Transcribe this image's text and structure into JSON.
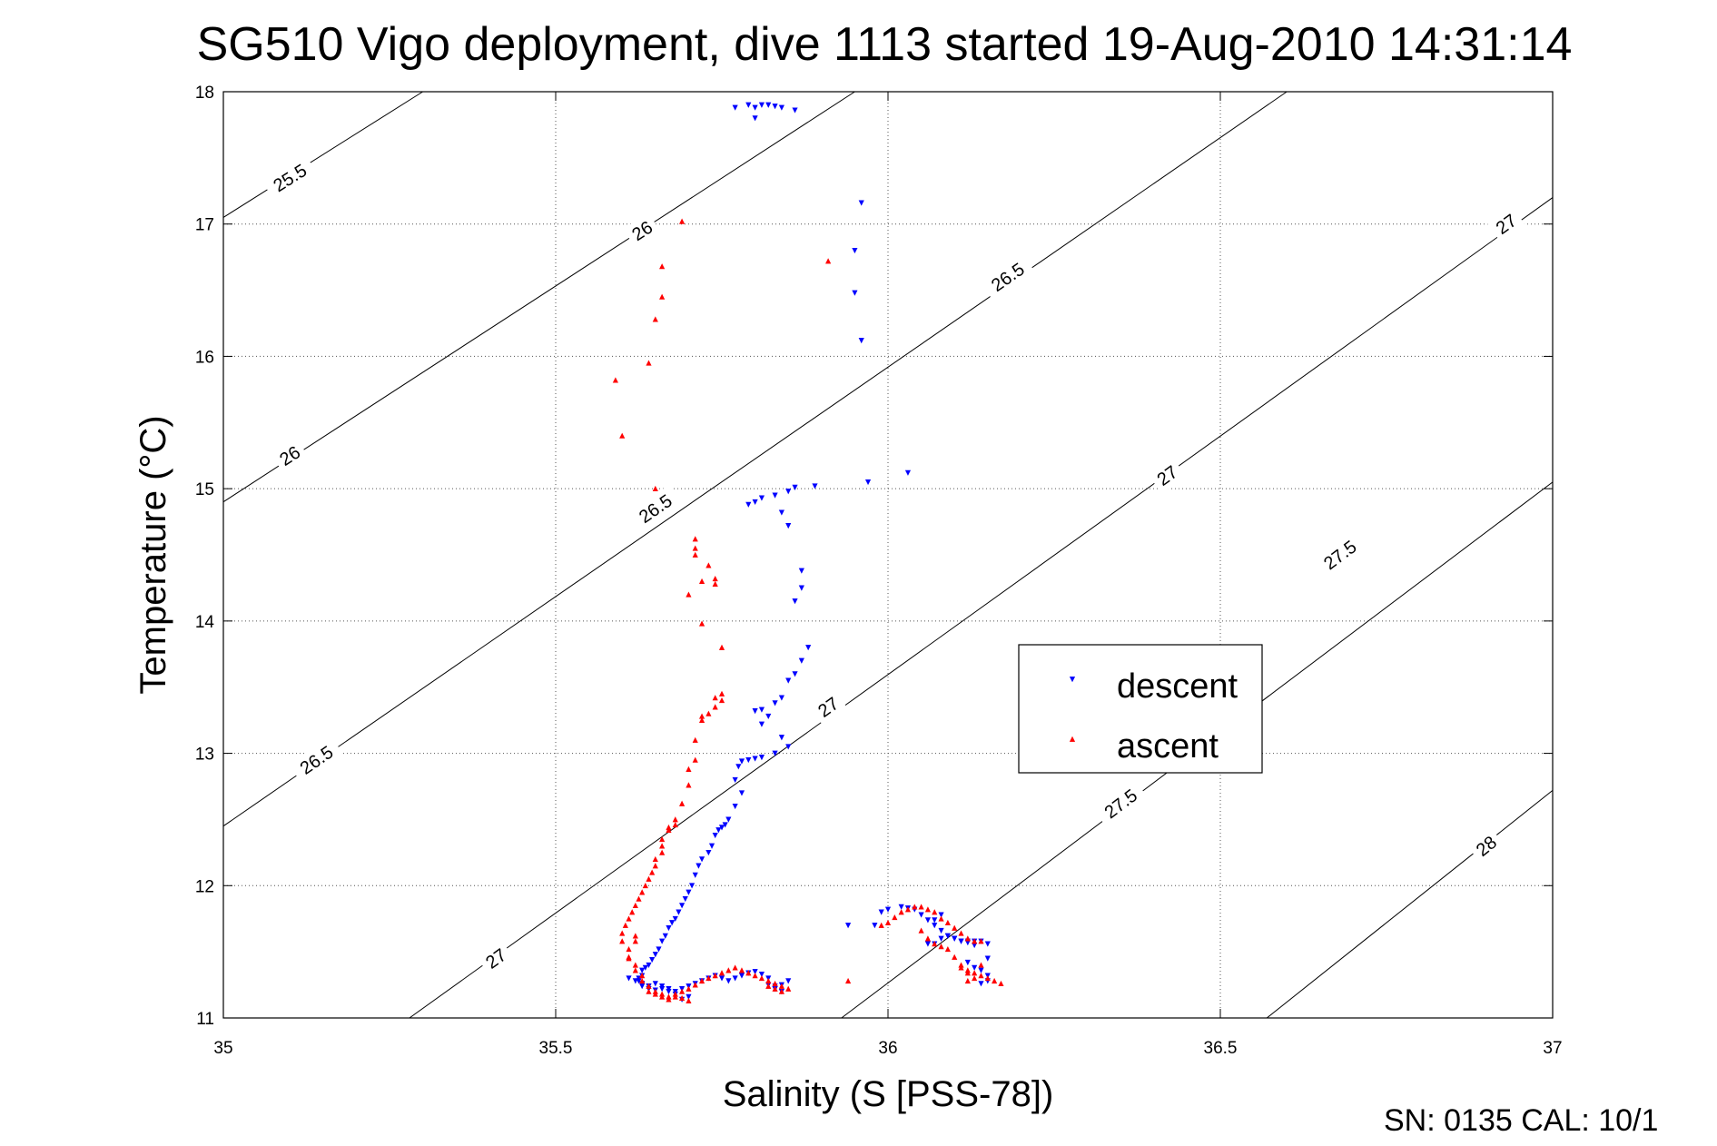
{
  "chart_data": {
    "type": "scatter",
    "title": "SG510 Vigo deployment, dive 1113 started 19-Aug-2010 14:31:14",
    "xlabel": "Salinity (S [PSS-78])",
    "ylabel": "Temperature (°C)",
    "xlim": [
      35,
      37
    ],
    "ylim": [
      11,
      18
    ],
    "xticks": [
      "35",
      "35.5",
      "36",
      "36.5",
      "37"
    ],
    "yticks": [
      "11",
      "12",
      "13",
      "14",
      "15",
      "16",
      "17",
      "18"
    ],
    "grid": true,
    "legend_position": "center-right",
    "footer": "SN: 0135  CAL: 10/1",
    "density_contours": [
      {
        "label": "25.5",
        "points": [
          [
            35.0,
            17.05
          ],
          [
            35.3,
            18.0
          ]
        ],
        "label_positions": [
          [
            35.1,
            17.35
          ]
        ]
      },
      {
        "label": "26",
        "points": [
          [
            35.0,
            14.9
          ],
          [
            35.95,
            18.0
          ]
        ],
        "label_positions": [
          [
            35.1,
            15.25
          ],
          [
            35.63,
            16.95
          ]
        ]
      },
      {
        "label": "26.5",
        "points": [
          [
            35.0,
            12.45
          ],
          [
            36.6,
            18.0
          ]
        ],
        "label_positions": [
          [
            35.14,
            12.95
          ],
          [
            35.65,
            14.85
          ],
          [
            36.18,
            16.6
          ]
        ]
      },
      {
        "label": "27",
        "points": [
          [
            35.28,
            11.0
          ],
          [
            37.0,
            17.2
          ]
        ],
        "label_positions": [
          [
            35.41,
            11.45
          ],
          [
            35.91,
            13.35
          ],
          [
            36.42,
            15.1
          ],
          [
            36.93,
            17.0
          ]
        ]
      },
      {
        "label": "27.5",
        "points": [
          [
            35.93,
            11.0
          ],
          [
            37.0,
            15.05
          ]
        ],
        "label_positions": [
          [
            36.35,
            12.62
          ],
          [
            36.68,
            14.5
          ]
        ]
      },
      {
        "label": "28",
        "points": [
          [
            36.57,
            11.0
          ],
          [
            37.0,
            12.72
          ]
        ],
        "label_positions": [
          [
            36.9,
            12.3
          ]
        ]
      }
    ],
    "series": [
      {
        "name": "descent",
        "color": "#0000ff",
        "marker": "triangle-down",
        "x": [
          35.77,
          35.79,
          35.8,
          35.81,
          35.82,
          35.83,
          35.84,
          35.86,
          35.8,
          35.96,
          35.95,
          35.95,
          35.96,
          36.03,
          35.97,
          35.89,
          35.86,
          35.85,
          35.83,
          35.81,
          35.8,
          35.79,
          35.84,
          35.85,
          35.87,
          35.87,
          35.86,
          35.88,
          35.87,
          35.86,
          35.85,
          35.84,
          35.83,
          35.81,
          35.82,
          35.8,
          35.81,
          35.84,
          35.85,
          35.83,
          35.81,
          35.8,
          35.79,
          35.78,
          35.775,
          35.77,
          35.78,
          35.77,
          35.76,
          35.755,
          35.75,
          35.745,
          35.74,
          35.735,
          35.73,
          35.72,
          35.715,
          35.71,
          35.705,
          35.7,
          35.695,
          35.69,
          35.685,
          35.68,
          35.675,
          35.67,
          35.665,
          35.66,
          35.655,
          35.65,
          35.645,
          35.64,
          35.635,
          35.63,
          35.63,
          35.625,
          35.625,
          35.63,
          35.63,
          35.63,
          35.64,
          35.64,
          35.65,
          35.66,
          35.67,
          35.68,
          35.69,
          35.7,
          35.71,
          35.72,
          35.73,
          35.74,
          35.75,
          35.76,
          35.77,
          35.78,
          35.79,
          35.8,
          35.81,
          35.82,
          35.82,
          35.83,
          35.84,
          35.85,
          35.84,
          35.83,
          35.83,
          35.94,
          35.98,
          35.99,
          36.0,
          36.02,
          36.03,
          36.04,
          36.05,
          36.06,
          36.07,
          36.08,
          36.09,
          36.1,
          36.11,
          36.12,
          36.13,
          36.14,
          36.15,
          36.13,
          36.12,
          36.11,
          36.1,
          36.09,
          36.08,
          36.07,
          36.06,
          36.07,
          36.08,
          36.12,
          36.13,
          36.14,
          36.15,
          36.15,
          36.14,
          36.15,
          35.69,
          35.7,
          35.68,
          35.67,
          35.66,
          35.65,
          35.64,
          35.63,
          35.62,
          35.61
        ],
        "y": [
          17.88,
          17.9,
          17.88,
          17.9,
          17.9,
          17.89,
          17.88,
          17.86,
          17.8,
          17.16,
          16.8,
          16.48,
          16.12,
          15.12,
          15.05,
          15.02,
          15.01,
          14.98,
          14.95,
          14.93,
          14.9,
          14.88,
          14.82,
          14.72,
          14.38,
          14.25,
          14.15,
          13.8,
          13.7,
          13.6,
          13.55,
          13.42,
          13.38,
          13.33,
          13.28,
          13.32,
          13.22,
          13.12,
          13.05,
          13.0,
          12.97,
          12.96,
          12.95,
          12.94,
          12.9,
          12.8,
          12.7,
          12.6,
          12.5,
          12.46,
          12.44,
          12.42,
          12.38,
          12.3,
          12.25,
          12.2,
          12.15,
          12.08,
          12.0,
          11.95,
          11.9,
          11.85,
          11.8,
          11.75,
          11.72,
          11.68,
          11.62,
          11.58,
          11.52,
          11.48,
          11.44,
          11.4,
          11.38,
          11.36,
          11.32,
          11.3,
          11.28,
          11.26,
          11.25,
          11.24,
          11.22,
          11.24,
          11.26,
          11.24,
          11.22,
          11.2,
          11.22,
          11.24,
          11.26,
          11.28,
          11.3,
          11.32,
          11.3,
          11.28,
          11.3,
          11.32,
          11.34,
          11.35,
          11.33,
          11.3,
          11.25,
          11.22,
          11.25,
          11.28,
          11.2,
          11.24,
          11.22,
          11.7,
          11.7,
          11.8,
          11.82,
          11.84,
          11.83,
          11.82,
          11.78,
          11.74,
          11.7,
          11.66,
          11.62,
          11.6,
          11.58,
          11.58,
          11.58,
          11.58,
          11.56,
          11.55,
          11.57,
          11.58,
          11.6,
          11.62,
          11.6,
          11.56,
          11.56,
          11.74,
          11.78,
          11.42,
          11.38,
          11.36,
          11.32,
          11.28,
          11.26,
          11.45,
          11.14,
          11.16,
          11.18,
          11.2,
          11.22,
          11.21,
          11.24,
          11.26,
          11.28,
          11.3
        ]
      },
      {
        "name": "ascent",
        "color": "#ff0000",
        "marker": "triangle-up",
        "x": [
          35.69,
          35.66,
          35.66,
          35.65,
          35.64,
          35.59,
          35.6,
          35.91,
          35.65,
          35.71,
          35.71,
          35.71,
          35.72,
          35.73,
          35.74,
          35.74,
          35.7,
          35.72,
          35.75,
          35.75,
          35.74,
          35.75,
          35.74,
          35.73,
          35.72,
          35.72,
          35.71,
          35.71,
          35.7,
          35.7,
          35.69,
          35.68,
          35.68,
          35.67,
          35.67,
          35.66,
          35.66,
          35.66,
          35.65,
          35.65,
          35.645,
          35.64,
          35.635,
          35.63,
          35.625,
          35.62,
          35.615,
          35.61,
          35.605,
          35.6,
          35.6,
          35.61,
          35.61,
          35.62,
          35.62,
          35.63,
          35.63,
          35.64,
          35.65,
          35.66,
          35.67,
          35.68,
          35.69,
          35.7,
          35.71,
          35.72,
          35.73,
          35.74,
          35.75,
          35.76,
          35.77,
          35.78,
          35.79,
          35.8,
          35.81,
          35.82,
          35.83,
          35.84,
          35.85,
          35.84,
          35.83,
          35.82,
          35.94,
          35.99,
          36.0,
          36.01,
          36.02,
          36.03,
          36.04,
          36.05,
          36.06,
          36.07,
          36.08,
          36.09,
          36.1,
          36.11,
          36.12,
          36.13,
          36.14,
          36.05,
          36.06,
          36.07,
          36.08,
          36.09,
          36.1,
          36.11,
          36.12,
          36.13,
          36.14,
          36.15,
          36.16,
          36.17,
          36.11,
          36.12,
          36.13,
          36.12,
          36.14,
          35.64,
          35.65,
          35.66,
          35.67,
          35.68,
          35.69,
          35.7,
          35.62,
          35.62,
          35.61
        ],
        "y": [
          17.02,
          16.68,
          16.45,
          16.28,
          15.95,
          15.82,
          15.4,
          16.72,
          15.0,
          14.62,
          14.55,
          14.5,
          14.3,
          14.42,
          14.32,
          14.28,
          14.2,
          13.98,
          13.8,
          13.45,
          13.42,
          13.4,
          13.35,
          13.3,
          13.28,
          13.25,
          13.1,
          12.95,
          12.88,
          12.76,
          12.62,
          12.5,
          12.46,
          12.44,
          12.42,
          12.35,
          12.3,
          12.25,
          12.2,
          12.15,
          12.1,
          12.05,
          12.0,
          11.95,
          11.9,
          11.85,
          11.8,
          11.75,
          11.7,
          11.64,
          11.58,
          11.52,
          11.45,
          11.4,
          11.36,
          11.32,
          11.28,
          11.24,
          11.2,
          11.18,
          11.16,
          11.18,
          11.2,
          11.22,
          11.25,
          11.28,
          11.3,
          11.32,
          11.34,
          11.36,
          11.38,
          11.36,
          11.34,
          11.32,
          11.3,
          11.28,
          11.26,
          11.24,
          11.22,
          11.2,
          11.22,
          11.24,
          11.28,
          11.7,
          11.72,
          11.76,
          11.8,
          11.82,
          11.84,
          11.84,
          11.82,
          11.8,
          11.75,
          11.72,
          11.68,
          11.64,
          11.6,
          11.58,
          11.58,
          11.66,
          11.6,
          11.56,
          11.54,
          11.52,
          11.46,
          11.4,
          11.36,
          11.34,
          11.32,
          11.3,
          11.28,
          11.26,
          11.38,
          11.34,
          11.3,
          11.28,
          11.4,
          11.2,
          11.18,
          11.16,
          11.14,
          11.16,
          11.15,
          11.13,
          11.62,
          11.58,
          11.46
        ]
      }
    ]
  }
}
